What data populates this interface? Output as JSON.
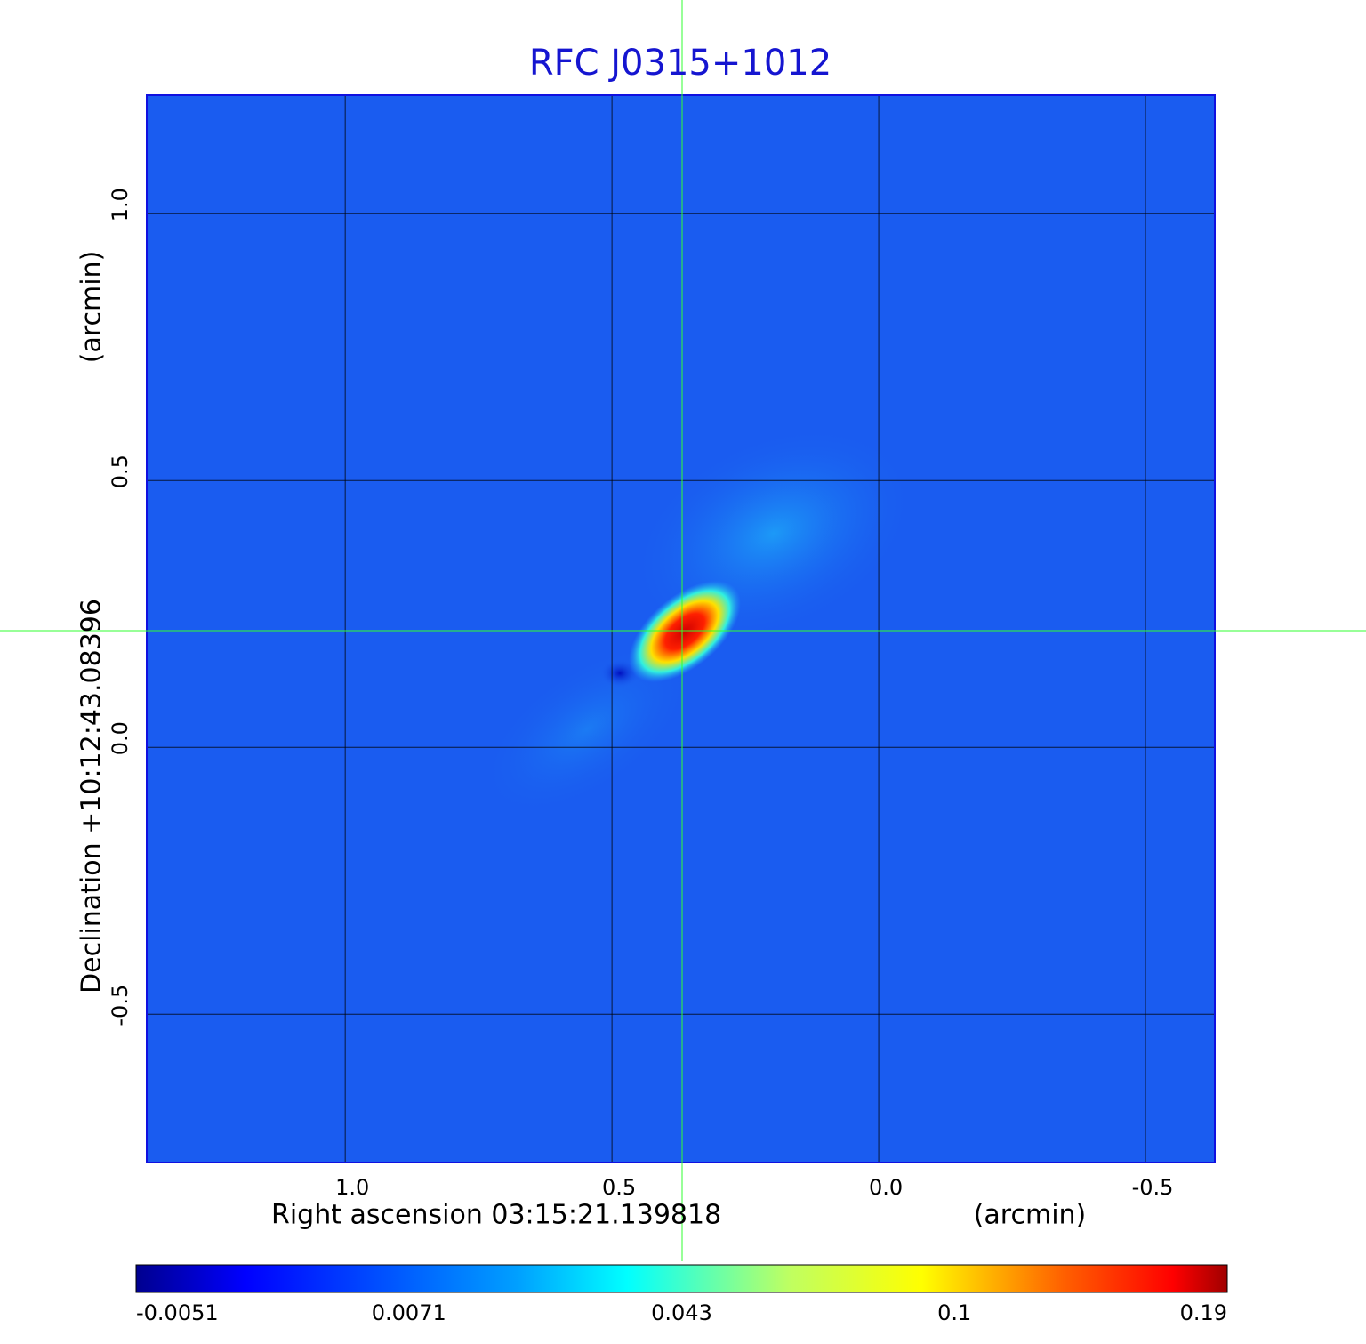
{
  "chart_data": {
    "type": "image",
    "title": "RFC J0315+1012",
    "x_label": "Right ascension  03:15:21.139818",
    "x_unit": "(arcmin)",
    "y_label": "Declination  +10:12:43.08396",
    "y_unit": "(arcmin)",
    "xlim": [
      1.372,
      -0.63
    ],
    "ylim": [
      -0.778,
      1.222
    ],
    "xticks": [
      {
        "value": 1,
        "label": "1.0"
      },
      {
        "value": 0.5,
        "label": "0.5"
      },
      {
        "value": 0,
        "label": "0.0"
      },
      -0.5
    ],
    "yticks": [
      {
        "value": 1,
        "label": "1.0"
      },
      {
        "value": 0.5,
        "label": "0.5"
      },
      {
        "value": 0,
        "label": "0.0"
      },
      -0.5
    ],
    "grid": true,
    "colormap": "jet",
    "colorbar_ticks": [
      -0.0051,
      0.0071,
      0.043,
      0.1,
      0.19
    ]
  }
}
